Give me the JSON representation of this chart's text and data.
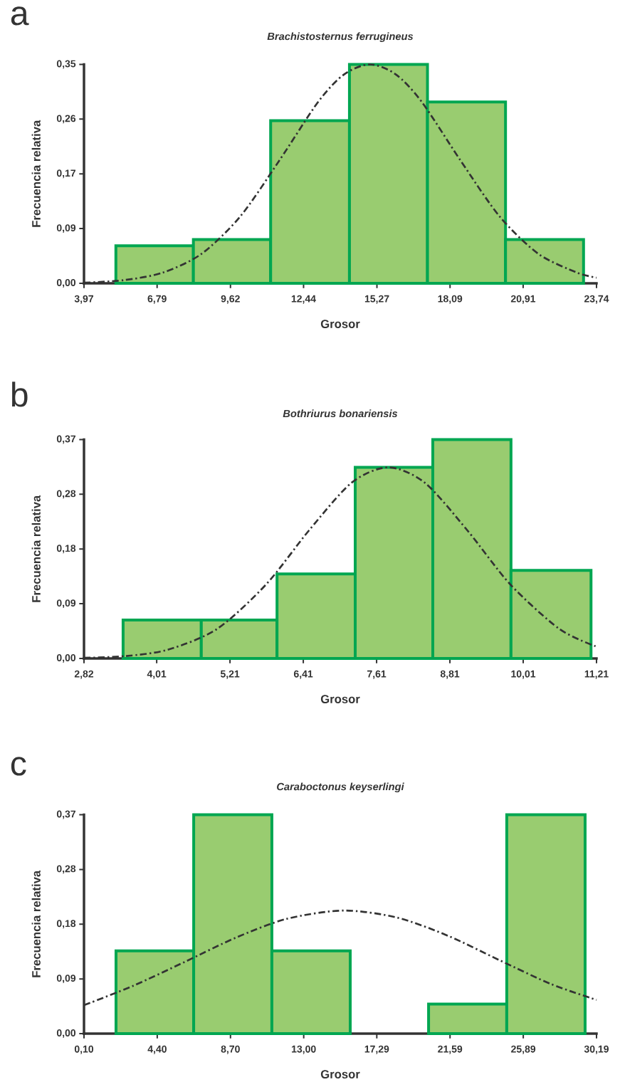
{
  "chart_data": [
    {
      "type": "histogram",
      "title": "Brachistosternus ferrugineus",
      "xlabel": "Grosor",
      "ylabel": "Frecuencia relativa",
      "annotations": [
        "a"
      ],
      "bins": [
        5.2,
        8.19,
        11.17,
        14.21,
        17.22,
        20.23,
        23.24
      ],
      "xlim": [
        3.97,
        23.74
      ],
      "xticks": [
        {
          "value": 3.97,
          "label": "3,97"
        },
        {
          "value": 6.79,
          "label": "6,79"
        },
        {
          "value": 9.62,
          "label": "9,62"
        },
        {
          "value": 12.44,
          "label": "12,44"
        },
        {
          "value": 15.27,
          "label": "15,27"
        },
        {
          "value": 18.09,
          "label": "18,09"
        },
        {
          "value": 20.91,
          "label": "20,91"
        },
        {
          "value": 23.74,
          "label": "23,74"
        }
      ],
      "ylim": [
        0,
        0.35
      ],
      "yticks": [
        {
          "value": 0,
          "label": "0,00"
        },
        {
          "value": 0.0875,
          "label": "0,09"
        },
        {
          "value": 0.175,
          "label": "0,17"
        },
        {
          "value": 0.2625,
          "label": "0,26"
        },
        {
          "value": 0.35,
          "label": "0,35"
        }
      ],
      "series": [
        {
          "color": "#99cc70",
          "values": [
            0.06,
            0.07,
            0.26,
            0.35,
            0.29,
            0.07
          ]
        },
        {
          "type": "line",
          "color": "#333333",
          "line_style": "dashed",
          "x": [
            3.97,
            5.5,
            7,
            8.5,
            10,
            11.5,
            13,
            14,
            15,
            16,
            17,
            18.5,
            20,
            21.5,
            23,
            23.74
          ],
          "values": [
            0.001,
            0.005,
            0.017,
            0.047,
            0.107,
            0.196,
            0.29,
            0.334,
            0.35,
            0.334,
            0.29,
            0.196,
            0.107,
            0.047,
            0.017,
            0.009
          ]
        }
      ]
    },
    {
      "type": "histogram",
      "title": "Bothriurus bonariensis",
      "xlabel": "Grosor",
      "ylabel": "Frecuencia relativa",
      "annotations": [
        "b"
      ],
      "bins": [
        3.46,
        4.74,
        5.98,
        7.26,
        8.53,
        9.81,
        11.12
      ],
      "xlim": [
        2.82,
        11.21
      ],
      "xticks": [
        {
          "value": 2.82,
          "label": "2,82"
        },
        {
          "value": 4.01,
          "label": "4,01"
        },
        {
          "value": 5.21,
          "label": "5,21"
        },
        {
          "value": 6.41,
          "label": "6,41"
        },
        {
          "value": 7.61,
          "label": "7,61"
        },
        {
          "value": 8.81,
          "label": "8,81"
        },
        {
          "value": 10.01,
          "label": "10,01"
        },
        {
          "value": 11.21,
          "label": "11,21"
        }
      ],
      "ylim": [
        0,
        0.37
      ],
      "yticks": [
        {
          "value": 0,
          "label": "0,00"
        },
        {
          "value": 0.0925,
          "label": "0,09"
        },
        {
          "value": 0.185,
          "label": "0,18"
        },
        {
          "value": 0.2775,
          "label": "0,28"
        },
        {
          "value": 0.37,
          "label": "0,37"
        }
      ],
      "series": [
        {
          "color": "#99cc70",
          "values": [
            0.065,
            0.065,
            0.143,
            0.323,
            0.37,
            0.149
          ]
        },
        {
          "type": "line",
          "color": "#333333",
          "line_style": "dashed",
          "x": [
            2.82,
            3.5,
            4.2,
            5,
            5.8,
            6.5,
            7.2,
            7.8,
            8.4,
            9.1,
            9.8,
            10.6,
            11.21
          ],
          "values": [
            0.001,
            0.004,
            0.015,
            0.05,
            0.125,
            0.216,
            0.297,
            0.323,
            0.297,
            0.216,
            0.125,
            0.05,
            0.02
          ]
        }
      ]
    },
    {
      "type": "histogram",
      "title": "Caraboctonus keyserlingi",
      "xlabel": "Grosor",
      "ylabel": "Frecuencia relativa",
      "annotations": [
        "c"
      ],
      "bins": [
        1.98,
        6.54,
        11.13,
        15.73,
        20.33,
        24.92,
        29.52
      ],
      "xlim": [
        0.1,
        30.19
      ],
      "xticks": [
        {
          "value": 0.1,
          "label": "0,10"
        },
        {
          "value": 4.4,
          "label": "4,40"
        },
        {
          "value": 8.7,
          "label": "8,70"
        },
        {
          "value": 13.0,
          "label": "13,00"
        },
        {
          "value": 17.29,
          "label": "17,29"
        },
        {
          "value": 21.59,
          "label": "21,59"
        },
        {
          "value": 25.89,
          "label": "25,89"
        },
        {
          "value": 30.19,
          "label": "30,19"
        }
      ],
      "ylim": [
        0,
        0.37
      ],
      "yticks": [
        {
          "value": 0,
          "label": "0,00"
        },
        {
          "value": 0.0925,
          "label": "0,09"
        },
        {
          "value": 0.185,
          "label": "0,18"
        },
        {
          "value": 0.2775,
          "label": "0,28"
        },
        {
          "value": 0.37,
          "label": "0,37"
        }
      ],
      "series": [
        {
          "color": "#99cc70",
          "values": [
            0.14,
            0.37,
            0.14,
            0,
            0.05,
            0.37
          ]
        },
        {
          "type": "line",
          "color": "#333333",
          "line_style": "dashed",
          "x": [
            0.1,
            3,
            6,
            9,
            12,
            15.35,
            18.5,
            21.5,
            24.5,
            27.5,
            30.19
          ],
          "values": [
            0.048,
            0.081,
            0.121,
            0.162,
            0.194,
            0.208,
            0.196,
            0.165,
            0.124,
            0.084,
            0.057
          ]
        }
      ]
    }
  ]
}
